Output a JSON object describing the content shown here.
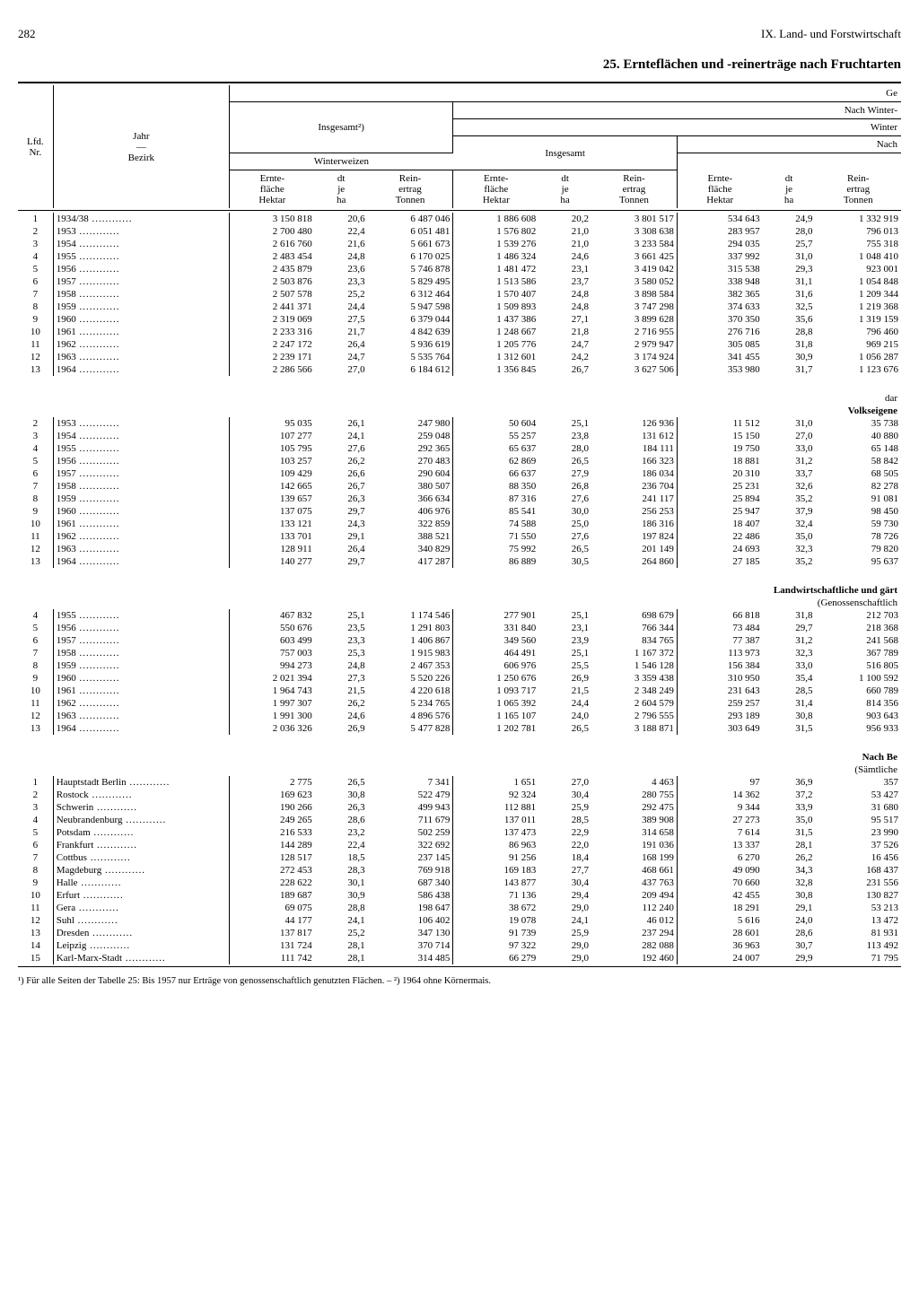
{
  "page_number": "282",
  "chapter": "IX. Land- und Forstwirtschaft",
  "title": "25. Ernteflächen und -reinerträge nach Fruchtarten",
  "headers": {
    "lfd": "Lfd.\nNr.",
    "jahr_bezirk": "Jahr\n—\nBezirk",
    "insgesamt2": "Insgesamt²)",
    "ge": "Ge",
    "nach_winter": "Nach Winter-",
    "winter": "Winter",
    "nach": "Nach",
    "insgesamt": "Insgesamt",
    "winterweizen": "Winterweizen",
    "erntefl": "Ernte-\nfläche\nHektar",
    "dtjeha": "dt\nje\nha",
    "reinertrag": "Rein-\nertrag\nTonnen"
  },
  "section_labels": {
    "dar": "dar",
    "volkseigene": "Volkseigene",
    "lwg": "Landwirtschaftliche und gärt",
    "genoss": "(Genossenschaftlich",
    "nachbe": "Nach Be",
    "saemtliche": "(Sämtliche"
  },
  "section1": [
    {
      "nr": "1",
      "y": "1934/38",
      "a": "3 150 818",
      "b": "20,6",
      "c": "6 487 046",
      "d": "1 886 608",
      "e": "20,2",
      "f": "3 801 517",
      "g": "534 643",
      "h": "24,9",
      "i": "1 332 919"
    },
    {
      "nr": "2",
      "y": "1953",
      "a": "2 700 480",
      "b": "22,4",
      "c": "6 051 481",
      "d": "1 576 802",
      "e": "21,0",
      "f": "3 308 638",
      "g": "283 957",
      "h": "28,0",
      "i": "796 013"
    },
    {
      "nr": "3",
      "y": "1954",
      "a": "2 616 760",
      "b": "21,6",
      "c": "5 661 673",
      "d": "1 539 276",
      "e": "21,0",
      "f": "3 233 584",
      "g": "294 035",
      "h": "25,7",
      "i": "755 318"
    },
    {
      "nr": "4",
      "y": "1955",
      "a": "2 483 454",
      "b": "24,8",
      "c": "6 170 025",
      "d": "1 486 324",
      "e": "24,6",
      "f": "3 661 425",
      "g": "337 992",
      "h": "31,0",
      "i": "1 048 410"
    },
    {
      "nr": "5",
      "y": "1956",
      "a": "2 435 879",
      "b": "23,6",
      "c": "5 746 878",
      "d": "1 481 472",
      "e": "23,1",
      "f": "3 419 042",
      "g": "315 538",
      "h": "29,3",
      "i": "923 001"
    },
    {
      "nr": "6",
      "y": "1957",
      "a": "2 503 876",
      "b": "23,3",
      "c": "5 829 495",
      "d": "1 513 586",
      "e": "23,7",
      "f": "3 580 052",
      "g": "338 948",
      "h": "31,1",
      "i": "1 054 848"
    },
    {
      "nr": "7",
      "y": "1958",
      "a": "2 507 578",
      "b": "25,2",
      "c": "6 312 464",
      "d": "1 570 407",
      "e": "24,8",
      "f": "3 898 584",
      "g": "382 365",
      "h": "31,6",
      "i": "1 209 344"
    },
    {
      "nr": "8",
      "y": "1959",
      "a": "2 441 371",
      "b": "24,4",
      "c": "5 947 598",
      "d": "1 509 893",
      "e": "24,8",
      "f": "3 747 298",
      "g": "374 633",
      "h": "32,5",
      "i": "1 219 368"
    },
    {
      "nr": "9",
      "y": "1960",
      "a": "2 319 069",
      "b": "27,5",
      "c": "6 379 044",
      "d": "1 437 386",
      "e": "27,1",
      "f": "3 899 628",
      "g": "370 350",
      "h": "35,6",
      "i": "1 319 159"
    },
    {
      "nr": "10",
      "y": "1961",
      "a": "2 233 316",
      "b": "21,7",
      "c": "4 842 639",
      "d": "1 248 667",
      "e": "21,8",
      "f": "2 716 955",
      "g": "276 716",
      "h": "28,8",
      "i": "796 460"
    },
    {
      "nr": "11",
      "y": "1962",
      "a": "2 247 172",
      "b": "26,4",
      "c": "5 936 619",
      "d": "1 205 776",
      "e": "24,7",
      "f": "2 979 947",
      "g": "305 085",
      "h": "31,8",
      "i": "969 215"
    },
    {
      "nr": "12",
      "y": "1963",
      "a": "2 239 171",
      "b": "24,7",
      "c": "5 535 764",
      "d": "1 312 601",
      "e": "24,2",
      "f": "3 174 924",
      "g": "341 455",
      "h": "30,9",
      "i": "1 056 287"
    },
    {
      "nr": "13",
      "y": "1964",
      "a": "2 286 566",
      "b": "27,0",
      "c": "6 184 612",
      "d": "1 356 845",
      "e": "26,7",
      "f": "3 627 506",
      "g": "353 980",
      "h": "31,7",
      "i": "1 123 676"
    }
  ],
  "section2": [
    {
      "nr": "2",
      "y": "1953",
      "a": "95 035",
      "b": "26,1",
      "c": "247 980",
      "d": "50 604",
      "e": "25,1",
      "f": "126 936",
      "g": "11 512",
      "h": "31,0",
      "i": "35 738"
    },
    {
      "nr": "3",
      "y": "1954",
      "a": "107 277",
      "b": "24,1",
      "c": "259 048",
      "d": "55 257",
      "e": "23,8",
      "f": "131 612",
      "g": "15 150",
      "h": "27,0",
      "i": "40 880"
    },
    {
      "nr": "4",
      "y": "1955",
      "a": "105 795",
      "b": "27,6",
      "c": "292 365",
      "d": "65 637",
      "e": "28,0",
      "f": "184 111",
      "g": "19 750",
      "h": "33,0",
      "i": "65 148"
    },
    {
      "nr": "5",
      "y": "1956",
      "a": "103 257",
      "b": "26,2",
      "c": "270 483",
      "d": "62 869",
      "e": "26,5",
      "f": "166 323",
      "g": "18 881",
      "h": "31,2",
      "i": "58 842"
    },
    {
      "nr": "6",
      "y": "1957",
      "a": "109 429",
      "b": "26,6",
      "c": "290 604",
      "d": "66 637",
      "e": "27,9",
      "f": "186 034",
      "g": "20 310",
      "h": "33,7",
      "i": "68 505"
    },
    {
      "nr": "7",
      "y": "1958",
      "a": "142 665",
      "b": "26,7",
      "c": "380 507",
      "d": "88 350",
      "e": "26,8",
      "f": "236 704",
      "g": "25 231",
      "h": "32,6",
      "i": "82 278"
    },
    {
      "nr": "8",
      "y": "1959",
      "a": "139 657",
      "b": "26,3",
      "c": "366 634",
      "d": "87 316",
      "e": "27,6",
      "f": "241 117",
      "g": "25 894",
      "h": "35,2",
      "i": "91 081"
    },
    {
      "nr": "9",
      "y": "1960",
      "a": "137 075",
      "b": "29,7",
      "c": "406 976",
      "d": "85 541",
      "e": "30,0",
      "f": "256 253",
      "g": "25 947",
      "h": "37,9",
      "i": "98 450"
    },
    {
      "nr": "10",
      "y": "1961",
      "a": "133 121",
      "b": "24,3",
      "c": "322 859",
      "d": "74 588",
      "e": "25,0",
      "f": "186 316",
      "g": "18 407",
      "h": "32,4",
      "i": "59 730"
    },
    {
      "nr": "11",
      "y": "1962",
      "a": "133 701",
      "b": "29,1",
      "c": "388 521",
      "d": "71 550",
      "e": "27,6",
      "f": "197 824",
      "g": "22 486",
      "h": "35,0",
      "i": "78 726"
    },
    {
      "nr": "12",
      "y": "1963",
      "a": "128 911",
      "b": "26,4",
      "c": "340 829",
      "d": "75 992",
      "e": "26,5",
      "f": "201 149",
      "g": "24 693",
      "h": "32,3",
      "i": "79 820"
    },
    {
      "nr": "13",
      "y": "1964",
      "a": "140 277",
      "b": "29,7",
      "c": "417 287",
      "d": "86 889",
      "e": "30,5",
      "f": "264 860",
      "g": "27 185",
      "h": "35,2",
      "i": "95 637"
    }
  ],
  "section3": [
    {
      "nr": "4",
      "y": "1955",
      "a": "467 832",
      "b": "25,1",
      "c": "1 174 546",
      "d": "277 901",
      "e": "25,1",
      "f": "698 679",
      "g": "66 818",
      "h": "31,8",
      "i": "212 703"
    },
    {
      "nr": "5",
      "y": "1956",
      "a": "550 676",
      "b": "23,5",
      "c": "1 291 803",
      "d": "331 840",
      "e": "23,1",
      "f": "766 344",
      "g": "73 484",
      "h": "29,7",
      "i": "218 368"
    },
    {
      "nr": "6",
      "y": "1957",
      "a": "603 499",
      "b": "23,3",
      "c": "1 406 867",
      "d": "349 560",
      "e": "23,9",
      "f": "834 765",
      "g": "77 387",
      "h": "31,2",
      "i": "241 568"
    },
    {
      "nr": "7",
      "y": "1958",
      "a": "757 003",
      "b": "25,3",
      "c": "1 915 983",
      "d": "464 491",
      "e": "25,1",
      "f": "1 167 372",
      "g": "113 973",
      "h": "32,3",
      "i": "367 789"
    },
    {
      "nr": "8",
      "y": "1959",
      "a": "994 273",
      "b": "24,8",
      "c": "2 467 353",
      "d": "606 976",
      "e": "25,5",
      "f": "1 546 128",
      "g": "156 384",
      "h": "33,0",
      "i": "516 805"
    },
    {
      "nr": "9",
      "y": "1960",
      "a": "2 021 394",
      "b": "27,3",
      "c": "5 520 226",
      "d": "1 250 676",
      "e": "26,9",
      "f": "3 359 438",
      "g": "310 950",
      "h": "35,4",
      "i": "1 100 592"
    },
    {
      "nr": "10",
      "y": "1961",
      "a": "1 964 743",
      "b": "21,5",
      "c": "4 220 618",
      "d": "1 093 717",
      "e": "21,5",
      "f": "2 348 249",
      "g": "231 643",
      "h": "28,5",
      "i": "660 789"
    },
    {
      "nr": "11",
      "y": "1962",
      "a": "1 997 307",
      "b": "26,2",
      "c": "5 234 765",
      "d": "1 065 392",
      "e": "24,4",
      "f": "2 604 579",
      "g": "259 257",
      "h": "31,4",
      "i": "814 356"
    },
    {
      "nr": "12",
      "y": "1963",
      "a": "1 991 300",
      "b": "24,6",
      "c": "4 896 576",
      "d": "1 165 107",
      "e": "24,0",
      "f": "2 796 555",
      "g": "293 189",
      "h": "30,8",
      "i": "903 643"
    },
    {
      "nr": "13",
      "y": "1964",
      "a": "2 036 326",
      "b": "26,9",
      "c": "5 477 828",
      "d": "1 202 781",
      "e": "26,5",
      "f": "3 188 871",
      "g": "303 649",
      "h": "31,5",
      "i": "956 933"
    }
  ],
  "section4": [
    {
      "nr": "1",
      "y": "Hauptstadt Berlin",
      "a": "2 775",
      "b": "26,5",
      "c": "7 341",
      "d": "1 651",
      "e": "27,0",
      "f": "4 463",
      "g": "97",
      "h": "36,9",
      "i": "357"
    },
    {
      "nr": "2",
      "y": "Rostock",
      "a": "169 623",
      "b": "30,8",
      "c": "522 479",
      "d": "92 324",
      "e": "30,4",
      "f": "280 755",
      "g": "14 362",
      "h": "37,2",
      "i": "53 427"
    },
    {
      "nr": "3",
      "y": "Schwerin",
      "a": "190 266",
      "b": "26,3",
      "c": "499 943",
      "d": "112 881",
      "e": "25,9",
      "f": "292 475",
      "g": "9 344",
      "h": "33,9",
      "i": "31 680"
    },
    {
      "nr": "4",
      "y": "Neubrandenburg",
      "a": "249 265",
      "b": "28,6",
      "c": "711 679",
      "d": "137 011",
      "e": "28,5",
      "f": "389 908",
      "g": "27 273",
      "h": "35,0",
      "i": "95 517"
    },
    {
      "nr": "5",
      "y": "Potsdam",
      "a": "216 533",
      "b": "23,2",
      "c": "502 259",
      "d": "137 473",
      "e": "22,9",
      "f": "314 658",
      "g": "7 614",
      "h": "31,5",
      "i": "23 990"
    },
    {
      "nr": "6",
      "y": "Frankfurt",
      "a": "144 289",
      "b": "22,4",
      "c": "322 692",
      "d": "86 963",
      "e": "22,0",
      "f": "191 036",
      "g": "13 337",
      "h": "28,1",
      "i": "37 526"
    },
    {
      "nr": "7",
      "y": "Cottbus",
      "a": "128 517",
      "b": "18,5",
      "c": "237 145",
      "d": "91 256",
      "e": "18,4",
      "f": "168 199",
      "g": "6 270",
      "h": "26,2",
      "i": "16 456"
    },
    {
      "nr": "8",
      "y": "Magdeburg",
      "a": "272 453",
      "b": "28,3",
      "c": "769 918",
      "d": "169 183",
      "e": "27,7",
      "f": "468 661",
      "g": "49 090",
      "h": "34,3",
      "i": "168 437"
    },
    {
      "nr": "9",
      "y": "Halle",
      "a": "228 622",
      "b": "30,1",
      "c": "687 340",
      "d": "143 877",
      "e": "30,4",
      "f": "437 763",
      "g": "70 660",
      "h": "32,8",
      "i": "231 556"
    },
    {
      "nr": "10",
      "y": "Erfurt",
      "a": "189 687",
      "b": "30,9",
      "c": "586 438",
      "d": "71 136",
      "e": "29,4",
      "f": "209 494",
      "g": "42 455",
      "h": "30,8",
      "i": "130 827"
    },
    {
      "nr": "11",
      "y": "Gera",
      "a": "69 075",
      "b": "28,8",
      "c": "198 647",
      "d": "38 672",
      "e": "29,0",
      "f": "112 240",
      "g": "18 291",
      "h": "29,1",
      "i": "53 213"
    },
    {
      "nr": "12",
      "y": "Suhl",
      "a": "44 177",
      "b": "24,1",
      "c": "106 402",
      "d": "19 078",
      "e": "24,1",
      "f": "46 012",
      "g": "5 616",
      "h": "24,0",
      "i": "13 472"
    },
    {
      "nr": "13",
      "y": "Dresden",
      "a": "137 817",
      "b": "25,2",
      "c": "347 130",
      "d": "91 739",
      "e": "25,9",
      "f": "237 294",
      "g": "28 601",
      "h": "28,6",
      "i": "81 931"
    },
    {
      "nr": "14",
      "y": "Leipzig",
      "a": "131 724",
      "b": "28,1",
      "c": "370 714",
      "d": "97 322",
      "e": "29,0",
      "f": "282 088",
      "g": "36 963",
      "h": "30,7",
      "i": "113 492"
    },
    {
      "nr": "15",
      "y": "Karl-Marx-Stadt",
      "a": "111 742",
      "b": "28,1",
      "c": "314 485",
      "d": "66 279",
      "e": "29,0",
      "f": "192 460",
      "g": "24 007",
      "h": "29,9",
      "i": "71 795"
    }
  ],
  "footnote": "¹) Für alle Seiten der Tabelle 25: Bis 1957 nur Erträge von genossenschaftlich genutzten Flächen. – ²) 1964 ohne Körnermais."
}
